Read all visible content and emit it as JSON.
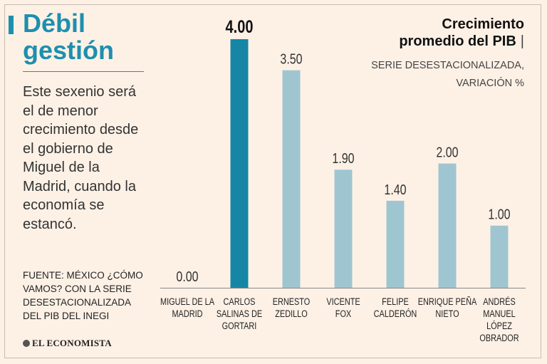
{
  "headline": {
    "line1": "Débil",
    "line2": "gestión"
  },
  "blurb": "Este sexenio será el de menor crecimiento desde el gobierno de Miguel de la Madrid, cuando la economía se estancó.",
  "source": "Fuente: México ¿Cómo vamos? con la serie desestacionalizada del PIB del INEGI",
  "brand": "EL ECONOMISTA",
  "chart_data": {
    "type": "bar",
    "title_line1": "Crecimiento",
    "title_line2": "promedio del PIB",
    "title_divider": "|",
    "subtitle": "Serie desestacionalizada, variación %",
    "categories": [
      [
        "MIGUEL DE LA",
        "MADRID"
      ],
      [
        "CARLOS",
        "SALINAS DE",
        "GORTARI"
      ],
      [
        "ERNESTO",
        "ZEDILLO"
      ],
      [
        "VICENTE",
        "FOX"
      ],
      [
        "FELIPE",
        "CALDERÓN"
      ],
      [
        "ENRIQUE PEÑA",
        "NIETO"
      ],
      [
        "ANDRÉS",
        "MANUEL",
        "LÓPEZ",
        "OBRADOR"
      ]
    ],
    "values": [
      0.0,
      4.0,
      3.5,
      1.9,
      1.4,
      2.0,
      1.0
    ],
    "value_labels": [
      "0.00",
      "4.00",
      "3.50",
      "1.90",
      "1.40",
      "2.00",
      "1.00"
    ],
    "highlight_index": 1,
    "ylim": [
      0,
      4
    ],
    "colors": {
      "bar": "#9fc6d0",
      "highlight": "#1786a6",
      "axis": "#888888",
      "label": "#333333"
    }
  }
}
